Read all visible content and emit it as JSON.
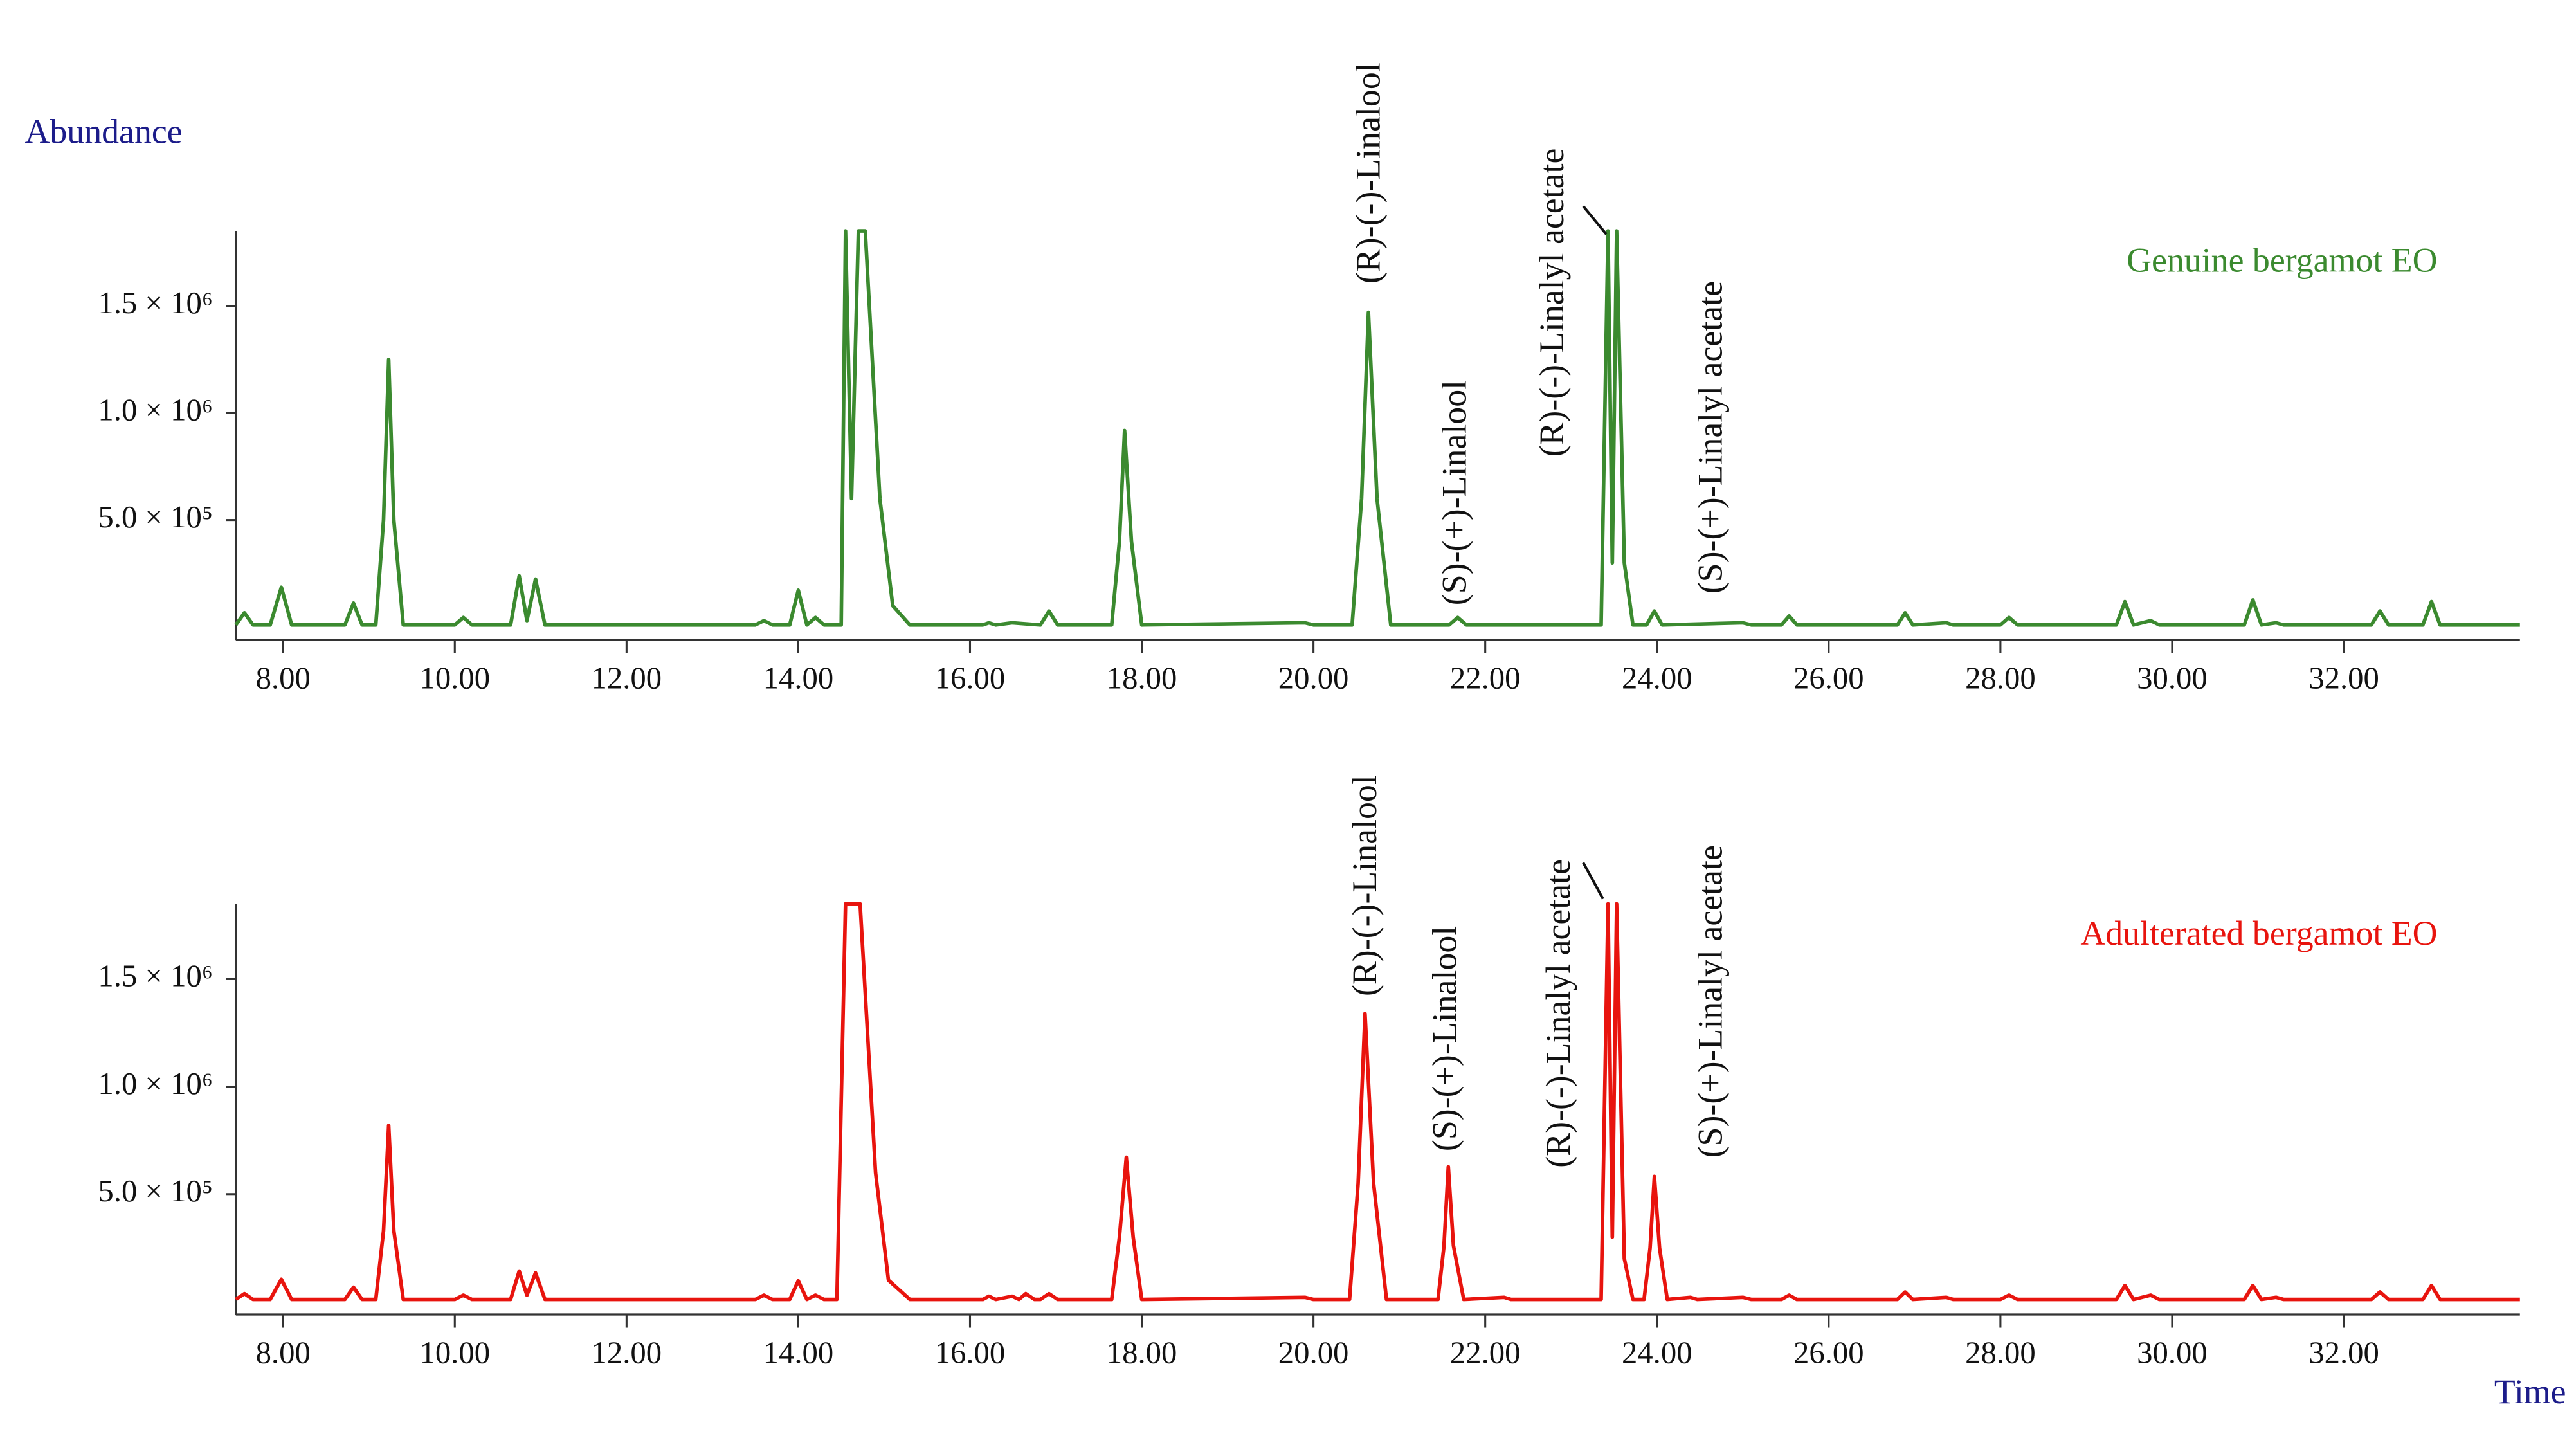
{
  "chart_data": [
    {
      "type": "line",
      "ylabel": "Abundance",
      "legend": "upper right",
      "xlim": [
        7.45,
        34.05
      ],
      "ylim": [
        -60000,
        1850000
      ],
      "xticks": [
        {
          "value": 8,
          "label": "8.00"
        },
        {
          "value": 10,
          "label": "10.00"
        },
        {
          "value": 12,
          "label": "12.00"
        },
        {
          "value": 14,
          "label": "14.00"
        },
        {
          "value": 16,
          "label": "16.00"
        },
        {
          "value": 18,
          "label": "18.00"
        },
        {
          "value": 20,
          "label": "20.00"
        },
        {
          "value": 22,
          "label": "22.00"
        },
        {
          "value": 24,
          "label": "24.00"
        },
        {
          "value": 26,
          "label": "26.00"
        },
        {
          "value": 28,
          "label": "28.00"
        },
        {
          "value": 30,
          "label": "30.00"
        },
        {
          "value": 32,
          "label": "32.00"
        }
      ],
      "yticks": [
        {
          "value": 500000,
          "label": "5.0 × 10⁵"
        },
        {
          "value": 1000000,
          "label": "1.0 × 10⁶"
        },
        {
          "value": 1500000,
          "label": "1.5 × 10⁶"
        }
      ],
      "annotations": [
        {
          "text": "(R)-(-)-Linalool",
          "x": 20.64
        },
        {
          "text": "(S)-(+)-Linalool",
          "x": 21.68
        },
        {
          "text": "(R)-(-)-Linalyl acetate",
          "x": 23.43
        },
        {
          "text": "(S)-(+)-Linalyl acetate",
          "x": 23.97
        }
      ],
      "x": [
        7.45,
        7.55,
        7.65,
        7.85,
        7.98,
        8.1,
        8.72,
        8.82,
        8.92,
        9.08,
        9.17,
        9.23,
        9.29,
        9.4,
        10.0,
        10.1,
        10.2,
        10.65,
        10.75,
        10.84,
        10.94,
        11.05,
        13.5,
        13.6,
        13.7,
        13.9,
        14.0,
        14.1,
        14.2,
        14.3,
        14.5,
        14.55,
        14.62,
        14.7,
        14.78,
        14.95,
        15.1,
        15.3,
        16.15,
        16.22,
        16.3,
        16.49,
        16.82,
        16.92,
        17.02,
        17.65,
        17.74,
        17.8,
        17.88,
        18.0,
        19.9,
        20.0,
        20.45,
        20.56,
        20.64,
        20.74,
        20.9,
        21.58,
        21.68,
        21.78,
        23.35,
        23.43,
        23.48,
        23.53,
        23.62,
        23.72,
        23.88,
        23.97,
        24.06,
        25.0,
        25.1,
        25.45,
        25.54,
        25.63,
        26.8,
        26.89,
        26.98,
        27.37,
        27.45,
        28.0,
        28.1,
        28.2,
        29.35,
        29.45,
        29.55,
        29.75,
        29.85,
        30.84,
        30.94,
        31.04,
        31.21,
        31.3,
        32.32,
        32.42,
        32.52,
        32.92,
        33.02,
        33.12,
        34.05
      ],
      "series": [
        {
          "name": "Genuine bergamot EO",
          "color": "#3b8a2f",
          "values": [
            10000,
            67000,
            10000,
            10000,
            186000,
            10000,
            10000,
            112000,
            10000,
            10000,
            500000,
            1250000,
            500000,
            10000,
            10000,
            45000,
            10000,
            10000,
            239000,
            30000,
            224000,
            10000,
            10000,
            30000,
            10000,
            10000,
            172000,
            10000,
            45000,
            10000,
            10000,
            1850000,
            600000,
            1850000,
            1850000,
            600000,
            100000,
            10000,
            10000,
            20000,
            10000,
            20000,
            10000,
            75000,
            10000,
            10000,
            400000,
            918000,
            400000,
            10000,
            20000,
            10000,
            10000,
            600000,
            1470000,
            600000,
            10000,
            10000,
            45000,
            10000,
            10000,
            1850000,
            300000,
            1850000,
            300000,
            10000,
            10000,
            75000,
            10000,
            20000,
            10000,
            10000,
            52000,
            10000,
            10000,
            67000,
            10000,
            20000,
            10000,
            10000,
            45000,
            10000,
            10000,
            119000,
            10000,
            30000,
            10000,
            10000,
            127000,
            10000,
            20000,
            10000,
            10000,
            75000,
            10000,
            10000,
            119000,
            10000,
            10000
          ]
        }
      ]
    },
    {
      "type": "line",
      "xlabel": "Time",
      "legend": "upper right",
      "xlim": [
        7.45,
        34.05
      ],
      "ylim": [
        -60000,
        1850000
      ],
      "xticks": [
        {
          "value": 8,
          "label": "8.00"
        },
        {
          "value": 10,
          "label": "10.00"
        },
        {
          "value": 12,
          "label": "12.00"
        },
        {
          "value": 14,
          "label": "14.00"
        },
        {
          "value": 16,
          "label": "16.00"
        },
        {
          "value": 18,
          "label": "18.00"
        },
        {
          "value": 20,
          "label": "20.00"
        },
        {
          "value": 22,
          "label": "22.00"
        },
        {
          "value": 24,
          "label": "24.00"
        },
        {
          "value": 26,
          "label": "26.00"
        },
        {
          "value": 28,
          "label": "28.00"
        },
        {
          "value": 30,
          "label": "30.00"
        },
        {
          "value": 32,
          "label": "32.00"
        }
      ],
      "yticks": [
        {
          "value": 500000,
          "label": "5.0 × 10⁵"
        },
        {
          "value": 1000000,
          "label": "1.0 × 10⁶"
        },
        {
          "value": 1500000,
          "label": "1.5 × 10⁶"
        }
      ],
      "annotations": [
        {
          "text": "(R)-(-)-Linalool",
          "x": 20.6
        },
        {
          "text": "(S)-(+)-Linalool",
          "x": 21.57
        },
        {
          "text": "(R)-(-)-Linalyl acetate",
          "x": 23.43
        },
        {
          "text": "(S)-(+)-Linalyl acetate",
          "x": 23.97
        }
      ],
      "x": [
        7.45,
        7.55,
        7.65,
        7.85,
        7.98,
        8.1,
        8.72,
        8.82,
        8.92,
        9.08,
        9.17,
        9.23,
        9.29,
        9.4,
        10.0,
        10.1,
        10.2,
        10.65,
        10.75,
        10.84,
        10.94,
        11.05,
        13.5,
        13.6,
        13.7,
        13.9,
        14.0,
        14.1,
        14.2,
        14.3,
        14.45,
        14.55,
        14.72,
        14.9,
        15.05,
        15.3,
        16.15,
        16.22,
        16.3,
        16.49,
        16.57,
        16.65,
        16.75,
        16.82,
        16.92,
        17.02,
        17.65,
        17.74,
        17.82,
        17.9,
        18.0,
        19.9,
        20.0,
        20.42,
        20.52,
        20.6,
        20.7,
        20.85,
        21.45,
        21.52,
        21.57,
        21.63,
        21.75,
        22.22,
        22.3,
        23.35,
        23.43,
        23.48,
        23.53,
        23.62,
        23.72,
        23.85,
        23.92,
        23.97,
        24.03,
        24.12,
        24.39,
        24.47,
        25.0,
        25.1,
        25.45,
        25.54,
        25.63,
        26.8,
        26.89,
        26.98,
        27.37,
        27.45,
        28.0,
        28.1,
        28.2,
        29.35,
        29.45,
        29.55,
        29.75,
        29.85,
        30.84,
        30.94,
        31.04,
        31.21,
        31.3,
        32.32,
        32.42,
        32.52,
        32.92,
        33.02,
        33.12,
        34.05
      ],
      "series": [
        {
          "name": "Adulterated bergamot EO",
          "color": "#e8140e",
          "values": [
            10000,
            37000,
            10000,
            10000,
            104000,
            10000,
            10000,
            67000,
            10000,
            10000,
            330000,
            820000,
            330000,
            10000,
            10000,
            30000,
            10000,
            10000,
            142000,
            30000,
            134000,
            10000,
            10000,
            30000,
            10000,
            10000,
            97000,
            10000,
            30000,
            10000,
            10000,
            1850000,
            1850000,
            600000,
            100000,
            10000,
            10000,
            25000,
            10000,
            25000,
            10000,
            37000,
            10000,
            10000,
            37000,
            10000,
            10000,
            300000,
            671000,
            300000,
            10000,
            20000,
            10000,
            10000,
            550000,
            1340000,
            550000,
            10000,
            10000,
            260000,
            627000,
            260000,
            10000,
            20000,
            10000,
            10000,
            1850000,
            300000,
            1850000,
            200000,
            10000,
            10000,
            250000,
            582000,
            250000,
            10000,
            20000,
            10000,
            20000,
            10000,
            10000,
            30000,
            10000,
            10000,
            45000,
            10000,
            20000,
            10000,
            10000,
            30000,
            10000,
            10000,
            75000,
            10000,
            30000,
            10000,
            10000,
            75000,
            10000,
            20000,
            10000,
            10000,
            45000,
            10000,
            10000,
            75000,
            10000,
            10000
          ]
        }
      ]
    }
  ]
}
